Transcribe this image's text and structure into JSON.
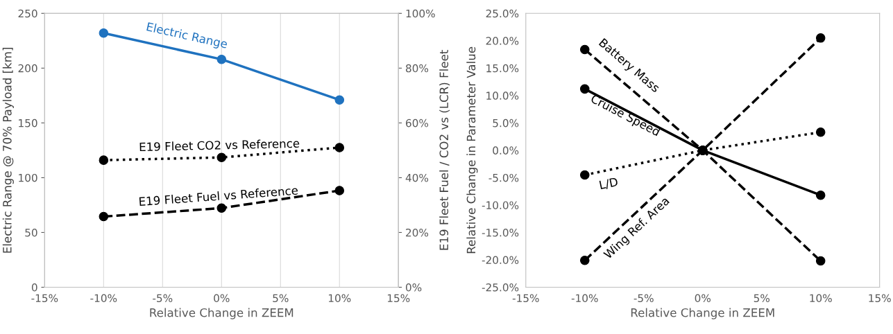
{
  "chart_data": [
    {
      "type": "line",
      "xlabel": "Relative Change in ZEEM",
      "ylabel": "Electric Range @ 70% Payload [km]",
      "y2label": "E19 Fleet Fuel / CO2 vs (LCR) Fleet",
      "xlim": [
        -15,
        15
      ],
      "xticks": [
        {
          "value": -15,
          "label": "-15%"
        },
        {
          "value": -10,
          "label": "-10%"
        },
        {
          "value": -5,
          "label": "-5%"
        },
        {
          "value": 0,
          "label": "0%"
        },
        {
          "value": 5,
          "label": "5%"
        },
        {
          "value": 10,
          "label": "10%"
        },
        {
          "value": 15,
          "label": "15%"
        }
      ],
      "ylim": [
        0,
        250
      ],
      "yticks": [
        0,
        50,
        100,
        150,
        200,
        250
      ],
      "y2lim": [
        0,
        100
      ],
      "y2ticks": [
        {
          "value": 0,
          "label": "0%"
        },
        {
          "value": 20,
          "label": "20%"
        },
        {
          "value": 40,
          "label": "40%"
        },
        {
          "value": 60,
          "label": "60%"
        },
        {
          "value": 80,
          "label": "80%"
        },
        {
          "value": 100,
          "label": "100%"
        }
      ],
      "x": [
        -10,
        0,
        10
      ],
      "grid": "x",
      "marker": "circle",
      "series": [
        {
          "name": "Electric Range",
          "color": "#1f72bf",
          "values": [
            232,
            208,
            171
          ],
          "line_style": "solid"
        },
        {
          "name": "E19 Fleet CO2 vs Reference",
          "color": "#000000",
          "values": [
            46.4,
            47.4,
            51.0
          ],
          "axis": "y2",
          "line_style": "dotted"
        },
        {
          "name": "E19 Fleet Fuel vs Reference",
          "color": "#000000",
          "values": [
            25.8,
            28.9,
            35.3
          ],
          "axis": "y2",
          "line_style": "dashed"
        }
      ]
    },
    {
      "type": "line",
      "xlabel": "Relative Change in ZEEM",
      "ylabel": "Relative Change in Parameter Value",
      "xlim": [
        -15,
        15
      ],
      "xticks": [
        {
          "value": -15,
          "label": "-15%"
        },
        {
          "value": -10,
          "label": "-10%"
        },
        {
          "value": -5,
          "label": "-5%"
        },
        {
          "value": 0,
          "label": "0%"
        },
        {
          "value": 5,
          "label": "5%"
        },
        {
          "value": 10,
          "label": "10%"
        },
        {
          "value": 15,
          "label": "15%"
        }
      ],
      "ylim": [
        -25,
        25
      ],
      "yticks": [
        {
          "value": -25,
          "label": "-25.0%"
        },
        {
          "value": -20,
          "label": "-20.0%"
        },
        {
          "value": -15,
          "label": "-15.0%"
        },
        {
          "value": -10,
          "label": "-10.0%"
        },
        {
          "value": -5,
          "label": "-5.0%"
        },
        {
          "value": 0,
          "label": "0.0%"
        },
        {
          "value": 5,
          "label": "5.0%"
        },
        {
          "value": 10,
          "label": "10.0%"
        },
        {
          "value": 15,
          "label": "15.0%"
        },
        {
          "value": 20,
          "label": "20.0%"
        },
        {
          "value": 25,
          "label": "25.0%"
        }
      ],
      "x": [
        -10,
        0,
        10
      ],
      "marker": "circle",
      "series": [
        {
          "name": "Battery Mass",
          "color": "#000000",
          "values": [
            18.4,
            0,
            -20.2
          ],
          "line_style": "dashed"
        },
        {
          "name": "Cruise Speed",
          "color": "#000000",
          "values": [
            11.2,
            0,
            -8.2
          ],
          "line_style": "solid"
        },
        {
          "name": "L/D",
          "color": "#000000",
          "values": [
            -4.5,
            0,
            3.3
          ],
          "line_style": "dotted"
        },
        {
          "name": "Wing Ref. Area",
          "color": "#000000",
          "values": [
            -20.1,
            0,
            20.5
          ],
          "line_style": "dashed"
        }
      ]
    }
  ]
}
